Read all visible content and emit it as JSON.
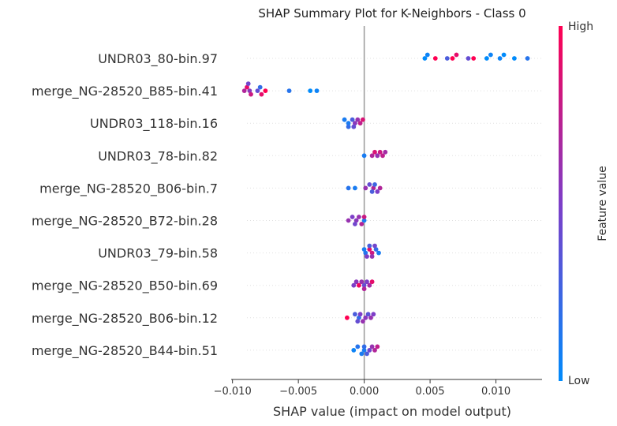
{
  "chart_data": {
    "type": "scatter",
    "subtype": "shap-beeswarm",
    "title": "SHAP Summary Plot for K-Neighbors - Class 0",
    "xlabel": "SHAP value (impact on model output)",
    "xlim": [
      -0.0101,
      0.0135
    ],
    "x_ticks": [
      -0.01,
      -0.005,
      0.0,
      0.005,
      0.01
    ],
    "x_tick_labels": [
      "−0.010",
      "−0.005",
      "0.000",
      "0.005",
      "0.010"
    ],
    "colorbar": {
      "label": "Feature value",
      "high_label": "High",
      "low_label": "Low",
      "high_color": "#ff0052",
      "low_color": "#008bfb"
    },
    "features": [
      {
        "name": "UNDR03_80-bin.97",
        "points": [
          {
            "x": 0.0046,
            "v": 0.0
          },
          {
            "x": 0.0048,
            "v": 0.05
          },
          {
            "x": 0.0054,
            "v": 1.0
          },
          {
            "x": 0.0063,
            "v": 0.3
          },
          {
            "x": 0.0067,
            "v": 1.0
          },
          {
            "x": 0.007,
            "v": 0.9
          },
          {
            "x": 0.0079,
            "v": 0.4
          },
          {
            "x": 0.0083,
            "v": 1.0
          },
          {
            "x": 0.0093,
            "v": 0.0
          },
          {
            "x": 0.0096,
            "v": 0.05
          },
          {
            "x": 0.0103,
            "v": 0.05
          },
          {
            "x": 0.0106,
            "v": 0.0
          },
          {
            "x": 0.0114,
            "v": 0.0
          },
          {
            "x": 0.0124,
            "v": 0.15
          }
        ]
      },
      {
        "name": "merge_NG-28520_B85-bin.41",
        "points": [
          {
            "x": -0.0091,
            "v": 0.7
          },
          {
            "x": -0.0089,
            "v": 0.9
          },
          {
            "x": -0.0087,
            "v": 0.55
          },
          {
            "x": -0.0086,
            "v": 0.8
          },
          {
            "x": -0.0088,
            "v": 0.45
          },
          {
            "x": -0.0081,
            "v": 0.4
          },
          {
            "x": -0.0079,
            "v": 0.2
          },
          {
            "x": -0.0078,
            "v": 0.9
          },
          {
            "x": -0.0075,
            "v": 1.0
          },
          {
            "x": -0.0057,
            "v": 0.15
          },
          {
            "x": -0.0041,
            "v": 0.0
          },
          {
            "x": -0.0036,
            "v": 0.05
          }
        ]
      },
      {
        "name": "UNDR03_118-bin.16",
        "points": [
          {
            "x": -0.0012,
            "v": 0.1
          },
          {
            "x": -0.0015,
            "v": 0.1
          },
          {
            "x": -0.0012,
            "v": 0.2
          },
          {
            "x": -0.0009,
            "v": 0.3
          },
          {
            "x": -0.0007,
            "v": 0.55
          },
          {
            "x": -0.0005,
            "v": 0.6
          },
          {
            "x": -0.0003,
            "v": 0.75
          },
          {
            "x": -0.0001,
            "v": 0.85
          },
          {
            "x": -0.0008,
            "v": 0.4
          }
        ]
      },
      {
        "name": "UNDR03_78-bin.82",
        "points": [
          {
            "x": 0.0,
            "v": 0.1
          },
          {
            "x": 0.0006,
            "v": 0.7
          },
          {
            "x": 0.0008,
            "v": 0.85
          },
          {
            "x": 0.001,
            "v": 0.6
          },
          {
            "x": 0.0012,
            "v": 0.8
          },
          {
            "x": 0.0014,
            "v": 0.75
          },
          {
            "x": 0.0016,
            "v": 0.65
          }
        ]
      },
      {
        "name": "merge_NG-28520_B06-bin.7",
        "points": [
          {
            "x": 0.0007,
            "v": 0.7
          },
          {
            "x": -0.0012,
            "v": 0.15
          },
          {
            "x": -0.0007,
            "v": 0.1
          },
          {
            "x": 0.0001,
            "v": 0.6
          },
          {
            "x": 0.0004,
            "v": 0.4
          },
          {
            "x": 0.0006,
            "v": 0.3
          },
          {
            "x": 0.0008,
            "v": 0.25
          },
          {
            "x": 0.001,
            "v": 0.5
          },
          {
            "x": 0.0012,
            "v": 0.7
          }
        ]
      },
      {
        "name": "merge_NG-28520_B72-bin.28",
        "points": [
          {
            "x": 0.0,
            "v": 0.1
          },
          {
            "x": -0.0012,
            "v": 0.6
          },
          {
            "x": -0.0009,
            "v": 0.5
          },
          {
            "x": -0.0006,
            "v": 0.55
          },
          {
            "x": -0.0004,
            "v": 0.6
          },
          {
            "x": -0.0002,
            "v": 0.7
          },
          {
            "x": 0.0,
            "v": 0.8
          },
          {
            "x": -0.0007,
            "v": 0.45
          }
        ]
      },
      {
        "name": "UNDR03_79-bin.58",
        "points": [
          {
            "x": 0.0001,
            "v": 0.15
          },
          {
            "x": 0.0004,
            "v": 0.9
          },
          {
            "x": 0.0006,
            "v": 0.8
          },
          {
            "x": 0.0,
            "v": 0.1
          },
          {
            "x": 0.0002,
            "v": 0.5
          },
          {
            "x": 0.0004,
            "v": 0.3
          },
          {
            "x": 0.0006,
            "v": 0.6
          },
          {
            "x": 0.0009,
            "v": 0.2
          },
          {
            "x": 0.0011,
            "v": 0.1
          },
          {
            "x": 0.0008,
            "v": 0.45
          }
        ]
      },
      {
        "name": "merge_NG-28520_B50-bin.69",
        "points": [
          {
            "x": 0.0,
            "v": 0.4
          },
          {
            "x": -0.0008,
            "v": 0.5
          },
          {
            "x": -0.0006,
            "v": 0.55
          },
          {
            "x": -0.0004,
            "v": 0.95
          },
          {
            "x": -0.0002,
            "v": 0.6
          },
          {
            "x": 0.0,
            "v": 0.7
          },
          {
            "x": 0.0002,
            "v": 0.5
          },
          {
            "x": 0.0004,
            "v": 0.65
          },
          {
            "x": 0.0006,
            "v": 0.9
          }
        ]
      },
      {
        "name": "merge_NG-28520_B06-bin.12",
        "points": [
          {
            "x": -0.0004,
            "v": 0.2
          },
          {
            "x": -0.0013,
            "v": 1.0
          },
          {
            "x": -0.0007,
            "v": 0.3
          },
          {
            "x": -0.0005,
            "v": 0.4
          },
          {
            "x": -0.0003,
            "v": 0.5
          },
          {
            "x": -0.0001,
            "v": 0.6
          },
          {
            "x": 0.0001,
            "v": 0.55
          },
          {
            "x": 0.0003,
            "v": 0.35
          },
          {
            "x": 0.0005,
            "v": 0.6
          },
          {
            "x": 0.0007,
            "v": 0.5
          }
        ]
      },
      {
        "name": "merge_NG-28520_B44-bin.51",
        "points": [
          {
            "x": 0.0,
            "v": 0.1
          },
          {
            "x": -0.0008,
            "v": 0.05
          },
          {
            "x": -0.0005,
            "v": 0.15
          },
          {
            "x": -0.0002,
            "v": 0.1
          },
          {
            "x": 0.0,
            "v": 0.2
          },
          {
            "x": 0.0002,
            "v": 0.3
          },
          {
            "x": 0.0004,
            "v": 0.45
          },
          {
            "x": 0.0006,
            "v": 0.6
          },
          {
            "x": 0.0008,
            "v": 0.7
          },
          {
            "x": 0.001,
            "v": 0.75
          }
        ]
      }
    ]
  }
}
